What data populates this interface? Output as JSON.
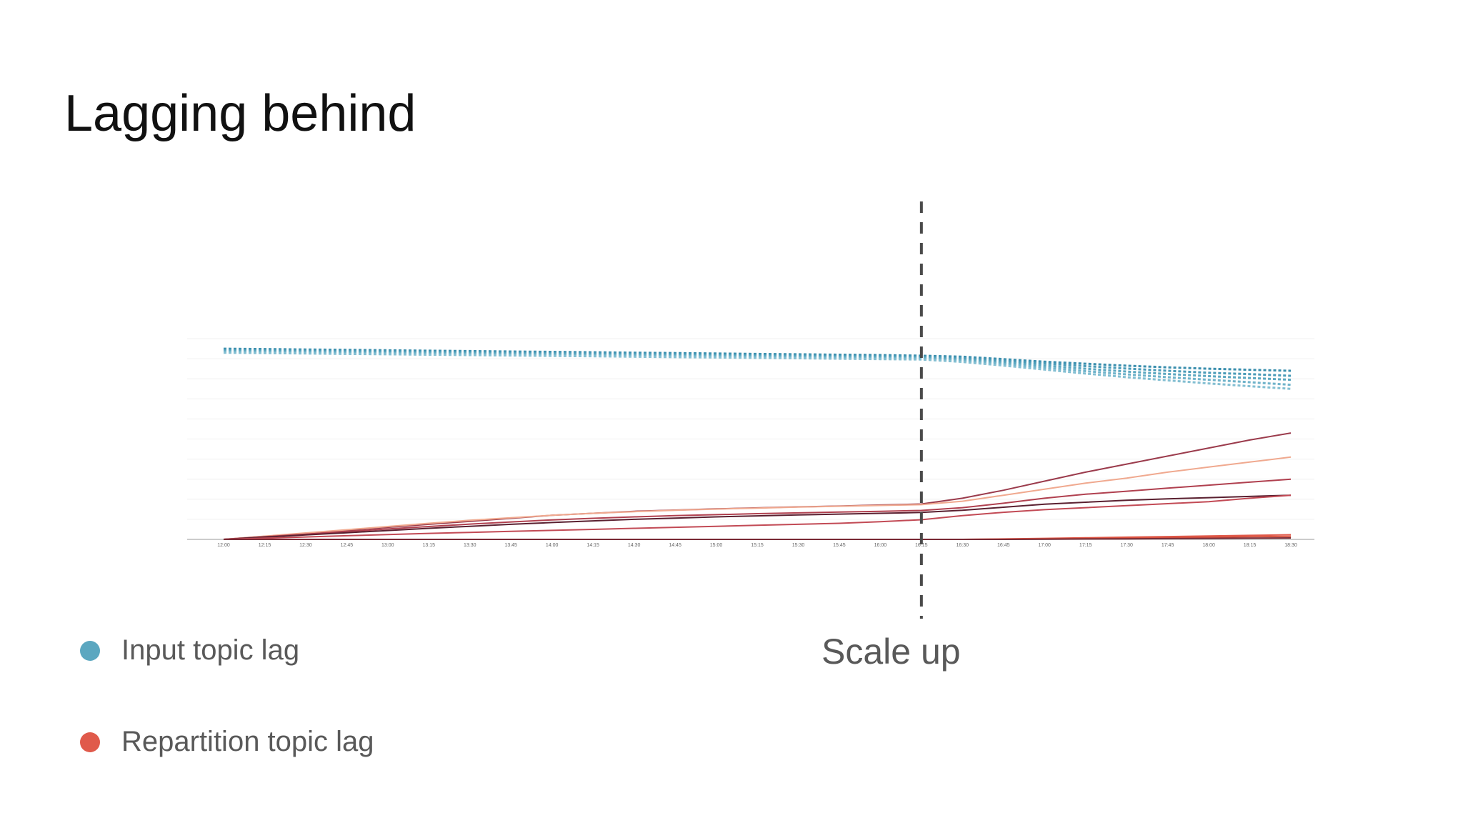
{
  "slide": {
    "title": "Lagging behind"
  },
  "legend": [
    {
      "label": "Input topic lag",
      "color": "#5ba7c0"
    },
    {
      "label": "Repartition topic lag",
      "color": "#e05a4b"
    }
  ],
  "annotation": {
    "label": "Scale up",
    "at": "16:15"
  },
  "chart_data": {
    "type": "line",
    "title": "",
    "xlabel": "",
    "ylabel": "",
    "grid": true,
    "x": [
      "12:00",
      "12:15",
      "12:30",
      "12:45",
      "13:00",
      "13:15",
      "13:30",
      "13:45",
      "14:00",
      "14:15",
      "14:30",
      "14:45",
      "15:00",
      "15:15",
      "15:30",
      "15:45",
      "16:00",
      "16:15",
      "16:30",
      "16:45",
      "17:00",
      "17:15",
      "17:30",
      "17:45",
      "18:00",
      "18:15",
      "18:30"
    ],
    "ylim": [
      0,
      100
    ],
    "series": [
      {
        "group": "input",
        "style": "dashed",
        "color": "#3b8fae",
        "values": [
          95,
          94.8,
          94.6,
          94.4,
          94.2,
          94,
          93.8,
          93.6,
          93.4,
          93.2,
          93,
          92.8,
          92.6,
          92.4,
          92.2,
          92,
          91.8,
          91.5,
          91,
          89.8,
          88.5,
          87.5,
          86.5,
          85.7,
          85,
          84.5,
          84
        ]
      },
      {
        "group": "input",
        "style": "dashed",
        "color": "#4a9bb8",
        "values": [
          94.4,
          94.2,
          94,
          93.8,
          93.6,
          93.4,
          93.2,
          93,
          92.8,
          92.6,
          92.4,
          92.2,
          92,
          91.8,
          91.6,
          91.4,
          91.2,
          91,
          90.3,
          89,
          87.6,
          86.3,
          85.1,
          84,
          83,
          82.3,
          81.5
        ]
      },
      {
        "group": "input",
        "style": "dashed",
        "color": "#5ba7c0",
        "values": [
          93.9,
          93.7,
          93.5,
          93.3,
          93.1,
          92.9,
          92.7,
          92.5,
          92.3,
          92.1,
          91.9,
          91.7,
          91.5,
          91.3,
          91.1,
          90.9,
          90.7,
          90.5,
          89.6,
          88.2,
          86.6,
          85,
          83.6,
          82.4,
          81.3,
          80.4,
          79.5
        ]
      },
      {
        "group": "input",
        "style": "dashed",
        "color": "#6fb3ca",
        "values": [
          93.5,
          93.3,
          93.1,
          92.9,
          92.7,
          92.5,
          92.3,
          92.1,
          91.9,
          91.7,
          91.5,
          91.3,
          91.1,
          90.9,
          90.7,
          90.5,
          90.3,
          90.1,
          89,
          87.4,
          85.6,
          83.8,
          82.2,
          80.8,
          79.5,
          78.3,
          77
        ]
      },
      {
        "group": "input",
        "style": "dashed",
        "color": "#84bfd2",
        "values": [
          93,
          92.8,
          92.6,
          92.4,
          92.2,
          92,
          91.8,
          91.6,
          91.4,
          91.2,
          91,
          90.8,
          90.6,
          90.4,
          90.2,
          90,
          89.8,
          89.6,
          88.4,
          86.6,
          84.6,
          82.6,
          80.8,
          79.2,
          77.7,
          76.3,
          75
        ]
      },
      {
        "group": "repartition",
        "style": "solid",
        "color": "#9b3b4c",
        "values": [
          0,
          1.5,
          3,
          4.5,
          6,
          7.5,
          9,
          10.5,
          12,
          13,
          14,
          14.6,
          15.2,
          15.7,
          16.2,
          16.6,
          17.1,
          17.6,
          20.5,
          24.5,
          29,
          33.5,
          37.5,
          41.5,
          45.5,
          49.5,
          53
        ]
      },
      {
        "group": "repartition",
        "style": "solid",
        "color": "#f0a98f",
        "values": [
          0,
          1.6,
          3.2,
          4.8,
          6.4,
          8,
          9.5,
          10.8,
          12,
          13,
          13.8,
          14.5,
          15.1,
          15.6,
          16.1,
          16.5,
          16.9,
          17.3,
          19,
          22,
          25,
          28,
          30.5,
          33.5,
          36,
          38.5,
          41
        ]
      },
      {
        "group": "repartition",
        "style": "solid",
        "color": "#b0404f",
        "values": [
          0,
          1.3,
          2.6,
          3.9,
          5.2,
          6.4,
          7.6,
          8.7,
          9.7,
          10.5,
          11.2,
          11.8,
          12.3,
          12.8,
          13.2,
          13.6,
          14,
          14.4,
          15.8,
          18,
          20.5,
          22.5,
          24,
          25.5,
          27,
          28.5,
          30
        ]
      },
      {
        "group": "repartition",
        "style": "solid",
        "color": "#5a2030",
        "values": [
          0,
          1.1,
          2.2,
          3.3,
          4.4,
          5.5,
          6.5,
          7.5,
          8.4,
          9.2,
          10,
          10.6,
          11.2,
          11.7,
          12.2,
          12.6,
          13,
          13.4,
          14.5,
          16,
          17.5,
          18.5,
          19.5,
          20.2,
          20.8,
          21.4,
          22
        ]
      },
      {
        "group": "repartition",
        "style": "solid",
        "color": "#c24a55",
        "values": [
          0,
          0.6,
          1.2,
          1.8,
          2.4,
          3,
          3.5,
          4,
          4.5,
          5,
          5.5,
          6,
          6.5,
          7,
          7.5,
          8,
          8.8,
          9.8,
          11.8,
          13.5,
          14.8,
          15.8,
          16.8,
          17.8,
          18.8,
          20.5,
          22
        ]
      },
      {
        "group": "repartition",
        "style": "solid",
        "color": "#e05a4b",
        "values": [
          0,
          0,
          0,
          0,
          0,
          0,
          0,
          0,
          0,
          0,
          0,
          0,
          0,
          0,
          0,
          0,
          0,
          0,
          0,
          0.2,
          0.5,
          0.8,
          1.1,
          1.4,
          1.7,
          2.0,
          2.3
        ]
      },
      {
        "group": "repartition",
        "style": "solid",
        "color": "#d9533f",
        "values": [
          0,
          0,
          0,
          0,
          0,
          0,
          0,
          0,
          0,
          0,
          0,
          0,
          0,
          0,
          0,
          0,
          0,
          0,
          0,
          0.1,
          0.3,
          0.5,
          0.7,
          0.9,
          1.1,
          1.3,
          1.5
        ]
      },
      {
        "group": "repartition",
        "style": "solid",
        "color": "#7a2a35",
        "values": [
          0,
          0,
          0,
          0,
          0,
          0,
          0,
          0,
          0,
          0,
          0,
          0,
          0,
          0,
          0,
          0,
          0,
          0,
          0,
          0,
          0.1,
          0.2,
          0.3,
          0.4,
          0.5,
          0.6,
          0.7
        ]
      }
    ]
  }
}
